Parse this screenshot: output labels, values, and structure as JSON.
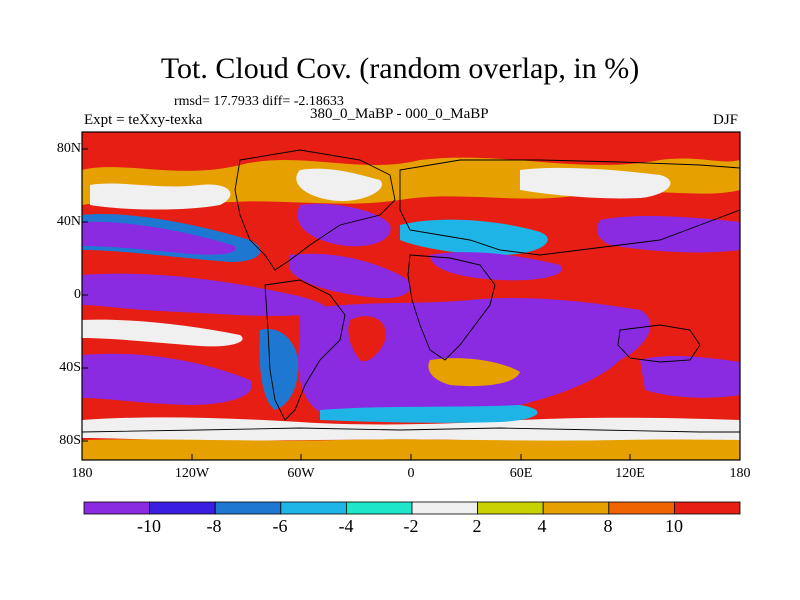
{
  "title": "Tot. Cloud Cov. (random overlap, in %)",
  "stats": "rmsd= 17.7933 diff= -2.18633",
  "expt": "Expt = teXxy-texka",
  "period": "380_0_MaBP - 000_0_MaBP",
  "season": "DJF",
  "lat_ticks": [
    "80N",
    "40N",
    "0",
    "40S",
    "80S"
  ],
  "lon_ticks": [
    "180",
    "120W",
    "60W",
    "0",
    "60E",
    "120E",
    "180"
  ],
  "colorbar": {
    "labels": [
      "-10",
      "-8",
      "-6",
      "-4",
      "-2",
      "2",
      "4",
      "8",
      "10"
    ],
    "colors": [
      "#8a2be2",
      "#3a1fe0",
      "#1e78d2",
      "#1eb4e6",
      "#1ee6c8",
      "#f0f0f0",
      "#c8d200",
      "#e6a000",
      "#f06400",
      "#e61e14"
    ]
  },
  "palette": {
    "purple": "#8a2be2",
    "blue": "#3a1fe0",
    "mid_blue": "#1e78d2",
    "cyan": "#1eb4e6",
    "teal": "#1ee6c8",
    "white": "#f0f0f0",
    "yellow": "#c8d200",
    "orange": "#e6a000",
    "dark_orange": "#f06400",
    "red": "#e61e14"
  }
}
